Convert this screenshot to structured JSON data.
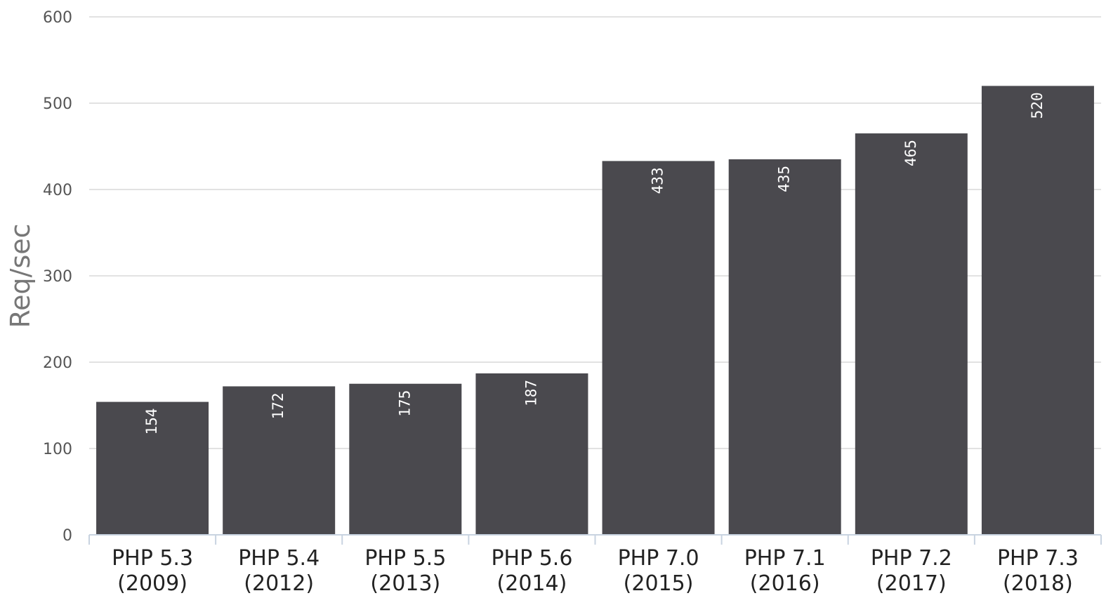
{
  "chart_data": {
    "type": "bar",
    "title": "",
    "xlabel": "",
    "ylabel": "Req/sec",
    "ylim": [
      0,
      600
    ],
    "yticks": [
      0,
      100,
      200,
      300,
      400,
      500,
      600
    ],
    "grid": true,
    "categories": [
      [
        "PHP 5.3",
        "(2009)"
      ],
      [
        "PHP 5.4",
        "(2012)"
      ],
      [
        "PHP 5.5",
        "(2013)"
      ],
      [
        "PHP 5.6",
        "(2014)"
      ],
      [
        "PHP 7.0",
        "(2015)"
      ],
      [
        "PHP 7.1",
        "(2016)"
      ],
      [
        "PHP 7.2",
        "(2017)"
      ],
      [
        "PHP 7.3",
        "(2018)"
      ]
    ],
    "values": [
      154,
      172,
      175,
      187,
      433,
      435,
      465,
      520
    ],
    "bar_color": "#4a494e",
    "value_label_color": "#ffffff"
  }
}
